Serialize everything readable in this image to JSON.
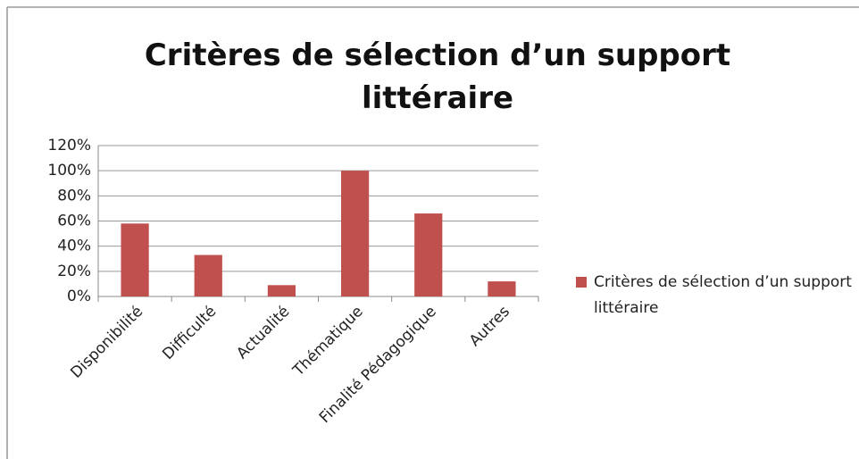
{
  "chart_data": {
    "type": "bar",
    "title": "Critères de sélection d’un support littéraire",
    "categories": [
      "Disponibilité",
      "Difficulté",
      "Actualité",
      "Thématique",
      "Finalité Pédagogique",
      "Autres"
    ],
    "series": [
      {
        "name": "Critères de sélection d’un support littéraire",
        "color": "#c0504d",
        "values": [
          58,
          33,
          9,
          100,
          66,
          12
        ]
      }
    ],
    "ylim": [
      0,
      120
    ],
    "yticks": [
      {
        "value": 0,
        "label": "0%"
      },
      {
        "value": 20,
        "label": "20%"
      },
      {
        "value": 40,
        "label": "40%"
      },
      {
        "value": 60,
        "label": "60%"
      },
      {
        "value": 80,
        "label": "80%"
      },
      {
        "value": 100,
        "label": "100%"
      },
      {
        "value": 120,
        "label": "120%"
      }
    ],
    "grid": true,
    "legend": "right"
  }
}
